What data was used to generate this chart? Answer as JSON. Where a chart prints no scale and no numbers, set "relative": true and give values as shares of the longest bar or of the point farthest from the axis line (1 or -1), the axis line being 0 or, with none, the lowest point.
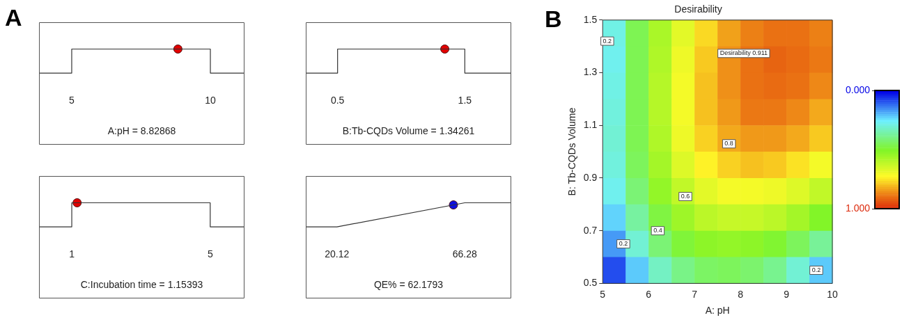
{
  "chart_data": [
    {
      "type": "line",
      "annotations": [
        "A"
      ],
      "xlabel": "A:pH = 8.82868",
      "xlim": [
        3.82,
        11.23
      ],
      "xticks": [
        5,
        10
      ],
      "relative": true,
      "series": [
        {
          "type": "line",
          "marker": "none",
          "color": "#333333",
          "x": [
            3.82,
            5,
            5,
            10,
            10,
            11.23
          ],
          "values": [
            0,
            0,
            1,
            1,
            0,
            0
          ]
        },
        {
          "type": "scatter",
          "marker": "circle",
          "color": "#e00000",
          "x": [
            8.82868
          ],
          "values": [
            1
          ]
        }
      ]
    },
    {
      "type": "line",
      "xlabel": "B:Tb-CQDs Volume = 1.34261",
      "xlim": [
        0.25,
        1.865
      ],
      "xticks": [
        0.5,
        1.5
      ],
      "relative": true,
      "series": [
        {
          "type": "line",
          "marker": "none",
          "color": "#333333",
          "x": [
            0.25,
            0.5,
            0.5,
            1.5,
            1.5,
            1.865
          ],
          "values": [
            0,
            0,
            1,
            1,
            0,
            0
          ]
        },
        {
          "type": "scatter",
          "marker": "circle",
          "color": "#e00000",
          "x": [
            1.34261
          ],
          "values": [
            1
          ]
        }
      ]
    },
    {
      "type": "line",
      "xlabel": "C:Incubation time = 1.15393",
      "xlim": [
        0.053,
        5.99
      ],
      "xticks": [
        1,
        5
      ],
      "relative": true,
      "series": [
        {
          "type": "line",
          "marker": "none",
          "color": "#333333",
          "x": [
            0.053,
            1,
            1,
            5,
            5,
            5.99
          ],
          "values": [
            0,
            0,
            1,
            1,
            0,
            0
          ]
        },
        {
          "type": "scatter",
          "marker": "circle",
          "color": "#e00000",
          "x": [
            1.15393
          ],
          "values": [
            1
          ]
        }
      ]
    },
    {
      "type": "line",
      "xlabel": "QE% = 62.1793",
      "xlim": [
        8.86,
        83.06
      ],
      "xticks": [
        20.12,
        66.28
      ],
      "relative": true,
      "series": [
        {
          "type": "line",
          "marker": "none",
          "color": "#333333",
          "x": [
            8.86,
            20.12,
            66.28,
            83.06
          ],
          "values": [
            0,
            0,
            1,
            1
          ]
        },
        {
          "type": "scatter",
          "marker": "circle",
          "color": "#1010e0",
          "x": [
            62.1793
          ],
          "values": [
            0.911
          ]
        }
      ]
    },
    {
      "type": "heatmap",
      "title": "Desirability",
      "xlabel": "A: pH",
      "ylabel": "B: Tb-CQDs Volume",
      "xlim": [
        5,
        10
      ],
      "ylim": [
        0.5,
        1.5
      ],
      "xticks": [
        5,
        6,
        7,
        8,
        9,
        10
      ],
      "yticks": [
        0.5,
        0.7,
        0.9,
        1.1,
        1.3,
        1.5
      ],
      "clim": [
        0,
        1
      ],
      "cticks": [
        {
          "value": 0,
          "label": "0.000"
        },
        {
          "value": 1,
          "label": "1.000"
        }
      ],
      "cells": [
        [
          0.28,
          0.45,
          0.57,
          0.67,
          0.76,
          0.83,
          0.87,
          0.89,
          0.89,
          0.87
        ],
        [
          0.27,
          0.45,
          0.58,
          0.69,
          0.78,
          0.85,
          0.89,
          0.91,
          0.9,
          0.88
        ],
        [
          0.28,
          0.45,
          0.59,
          0.7,
          0.79,
          0.85,
          0.89,
          0.9,
          0.89,
          0.86
        ],
        [
          0.29,
          0.45,
          0.59,
          0.7,
          0.79,
          0.84,
          0.88,
          0.88,
          0.86,
          0.82
        ],
        [
          0.3,
          0.45,
          0.58,
          0.69,
          0.77,
          0.82,
          0.84,
          0.84,
          0.82,
          0.78
        ],
        [
          0.29,
          0.44,
          0.56,
          0.66,
          0.73,
          0.77,
          0.79,
          0.78,
          0.75,
          0.7
        ],
        [
          0.27,
          0.41,
          0.53,
          0.61,
          0.67,
          0.7,
          0.7,
          0.69,
          0.66,
          0.61
        ],
        [
          0.22,
          0.36,
          0.47,
          0.55,
          0.6,
          0.62,
          0.62,
          0.6,
          0.56,
          0.5
        ],
        [
          0.16,
          0.3,
          0.41,
          0.48,
          0.52,
          0.53,
          0.52,
          0.49,
          0.44,
          0.37
        ],
        [
          0.08,
          0.21,
          0.32,
          0.39,
          0.43,
          0.44,
          0.42,
          0.38,
          0.3,
          0.21
        ]
      ],
      "annotations": [
        "B",
        {
          "text": "0.2",
          "x": 5.1,
          "y": 1.42
        },
        {
          "text": "0.2",
          "x": 5.45,
          "y": 0.65
        },
        {
          "text": "0.4",
          "x": 6.2,
          "y": 0.7
        },
        {
          "text": "0.6",
          "x": 6.8,
          "y": 0.83
        },
        {
          "text": "0.8",
          "x": 7.75,
          "y": 1.03
        },
        {
          "text": "0.2",
          "x": 9.65,
          "y": 0.55
        },
        "Desirability 0.911"
      ]
    }
  ]
}
